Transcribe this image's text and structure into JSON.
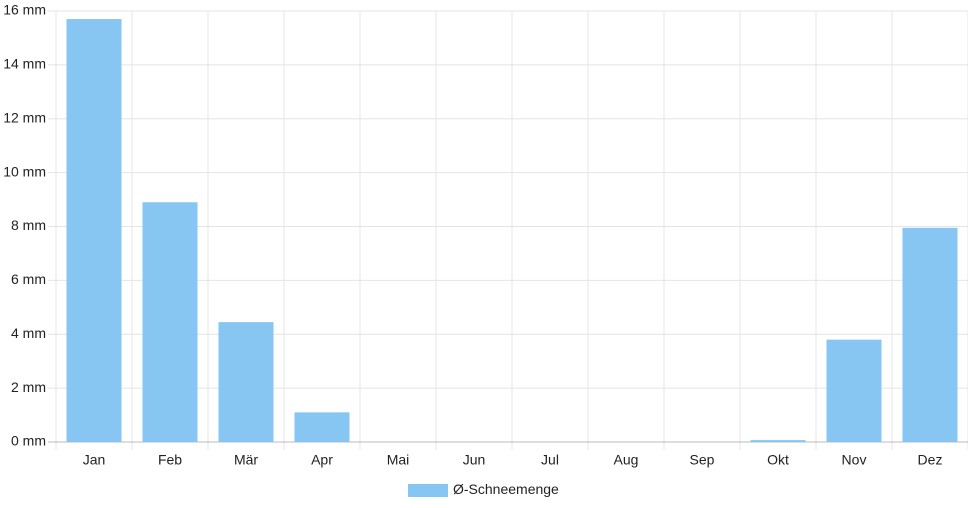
{
  "chart_data": {
    "type": "bar",
    "categories": [
      "Jan",
      "Feb",
      "Mär",
      "Apr",
      "Mai",
      "Jun",
      "Jul",
      "Aug",
      "Sep",
      "Okt",
      "Nov",
      "Dez"
    ],
    "series": [
      {
        "name": "Ø-Schneemenge",
        "color": "#87c6f2",
        "values": [
          15.7,
          8.9,
          4.45,
          1.1,
          0,
          0,
          0,
          0,
          0,
          0.07,
          3.8,
          7.95
        ]
      }
    ],
    "ylim": [
      0,
      16
    ],
    "yticks": [
      {
        "value": 0,
        "label": "0 mm"
      },
      {
        "value": 2,
        "label": "2 mm"
      },
      {
        "value": 4,
        "label": "4 mm"
      },
      {
        "value": 6,
        "label": "6 mm"
      },
      {
        "value": 8,
        "label": "8 mm"
      },
      {
        "value": 10,
        "label": "10 mm"
      },
      {
        "value": 12,
        "label": "12 mm"
      },
      {
        "value": 14,
        "label": "14 mm"
      },
      {
        "value": 16,
        "label": "16 mm"
      }
    ],
    "grid": true,
    "legend": "bottom"
  }
}
